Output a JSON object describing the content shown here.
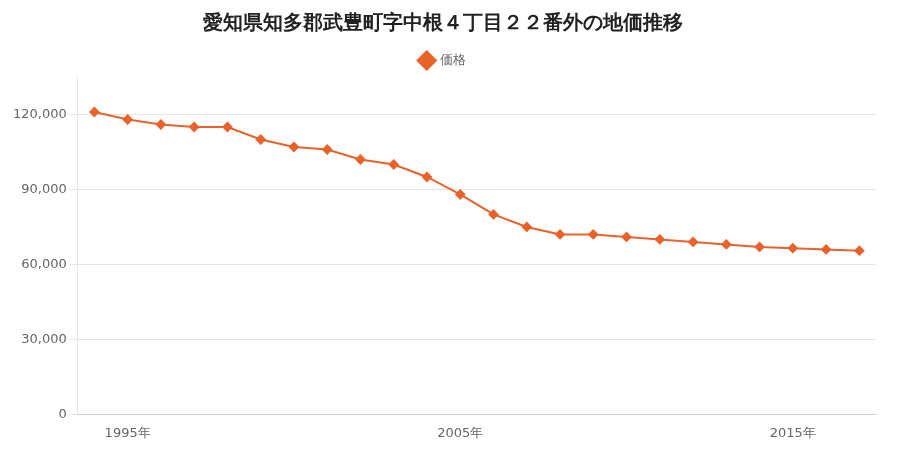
{
  "chart_data": {
    "type": "line",
    "title": "愛知県知多郡武豊町字中根４丁目２２番外の地価推移",
    "x": [
      1994,
      1995,
      1996,
      1997,
      1998,
      1999,
      2000,
      2001,
      2002,
      2003,
      2004,
      2005,
      2006,
      2007,
      2008,
      2009,
      2010,
      2011,
      2012,
      2013,
      2014,
      2015,
      2016,
      2017
    ],
    "series": [
      {
        "name": "価格",
        "color": "#e8622a",
        "marker": "diamond",
        "values": [
          121000,
          118000,
          116000,
          115000,
          115000,
          110000,
          107000,
          106000,
          102000,
          100000,
          95000,
          88000,
          80000,
          75000,
          72000,
          72000,
          71000,
          70000,
          69000,
          68000,
          67000,
          66500,
          66000,
          65500
        ]
      }
    ],
    "xlim": [
      1993.5,
      2017.5
    ],
    "xticks": [
      {
        "value": 1995,
        "label": "1995年"
      },
      {
        "value": 2005,
        "label": "2005年"
      },
      {
        "value": 2015,
        "label": "2015年"
      }
    ],
    "ylim": [
      0,
      135000
    ],
    "yticks": [
      0,
      {
        "value": 30000,
        "label": "30,000"
      },
      {
        "value": 60000,
        "label": "60,000"
      },
      {
        "value": 90000,
        "label": "90,000"
      },
      {
        "value": 120000,
        "label": "120,000"
      }
    ],
    "grid": "y",
    "legend": "top"
  }
}
